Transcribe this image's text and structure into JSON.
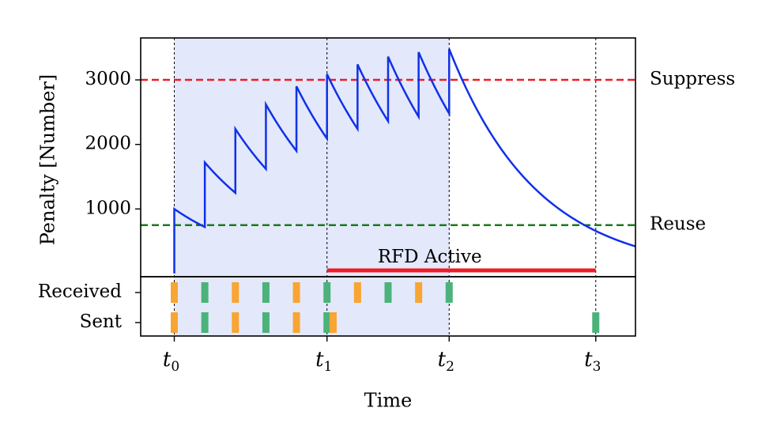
{
  "chart_data": {
    "type": "line",
    "ylabel": "Penalty [Number]",
    "xlabel": "Time",
    "yticks": [
      1000,
      2000,
      3000
    ],
    "ylim": [
      -50,
      3650
    ],
    "xlim": [
      -0.55,
      7.55
    ],
    "xticks": [
      {
        "base": "t",
        "sub": "0",
        "x": 0
      },
      {
        "base": "t",
        "sub": "1",
        "x": 2.5
      },
      {
        "base": "t",
        "sub": "2",
        "x": 4.5
      },
      {
        "base": "t",
        "sub": "3",
        "x": 6.9
      }
    ],
    "shaded_region": [
      0,
      4.5
    ],
    "thresholds": [
      {
        "name": "Suppress",
        "value": 3000,
        "color": "#ee1c25",
        "label": "Suppress"
      },
      {
        "name": "Reuse",
        "value": 750,
        "color": "#1b7a1b",
        "label": "Reuse"
      }
    ],
    "penalty_series": {
      "color": "#1031e8",
      "points": [
        [
          0,
          0
        ],
        [
          0,
          1000
        ],
        [
          0.5,
          720
        ],
        [
          0.5,
          1720
        ],
        [
          1,
          1250
        ],
        [
          1,
          2240
        ],
        [
          1.5,
          1620
        ],
        [
          1.5,
          2620
        ],
        [
          2,
          1900
        ],
        [
          2,
          2900
        ],
        [
          2.5,
          2090
        ],
        [
          2.5,
          3090
        ],
        [
          3,
          2240
        ],
        [
          3,
          3240
        ],
        [
          3.5,
          2360
        ],
        [
          3.5,
          3360
        ],
        [
          4,
          2430
        ],
        [
          4,
          3430
        ],
        [
          4.5,
          2480
        ],
        [
          4.5,
          3480
        ]
      ],
      "decay_after": {
        "start_x": 4.5,
        "start_y": 3480,
        "half_life": 1.0,
        "end_x": 7.55
      }
    },
    "rfd_active": {
      "label": "RFD Active",
      "x_start": 2.5,
      "x_end": 6.9,
      "color": "#ee1c25"
    },
    "event_rows": [
      {
        "label": "Received",
        "events": [
          {
            "x": 0,
            "color": "#f8a533"
          },
          {
            "x": 0.5,
            "color": "#4bb37a"
          },
          {
            "x": 1,
            "color": "#f8a533"
          },
          {
            "x": 1.5,
            "color": "#4bb37a"
          },
          {
            "x": 2,
            "color": "#f8a533"
          },
          {
            "x": 2.5,
            "color": "#4bb37a"
          },
          {
            "x": 3,
            "color": "#f8a533"
          },
          {
            "x": 3.5,
            "color": "#4bb37a"
          },
          {
            "x": 4,
            "color": "#f8a533"
          },
          {
            "x": 4.5,
            "color": "#4bb37a"
          }
        ]
      },
      {
        "label": "Sent",
        "events": [
          {
            "x": 0,
            "color": "#f8a533"
          },
          {
            "x": 0.5,
            "color": "#4bb37a"
          },
          {
            "x": 1,
            "color": "#f8a533"
          },
          {
            "x": 1.5,
            "color": "#4bb37a"
          },
          {
            "x": 2,
            "color": "#f8a533"
          },
          {
            "x": 2.5,
            "color": "#4bb37a"
          },
          {
            "x": 2.6,
            "color": "#f8a533"
          },
          {
            "x": 6.9,
            "color": "#4bb37a"
          }
        ]
      }
    ],
    "shade_color": "#e3e8fb",
    "grid": false
  }
}
